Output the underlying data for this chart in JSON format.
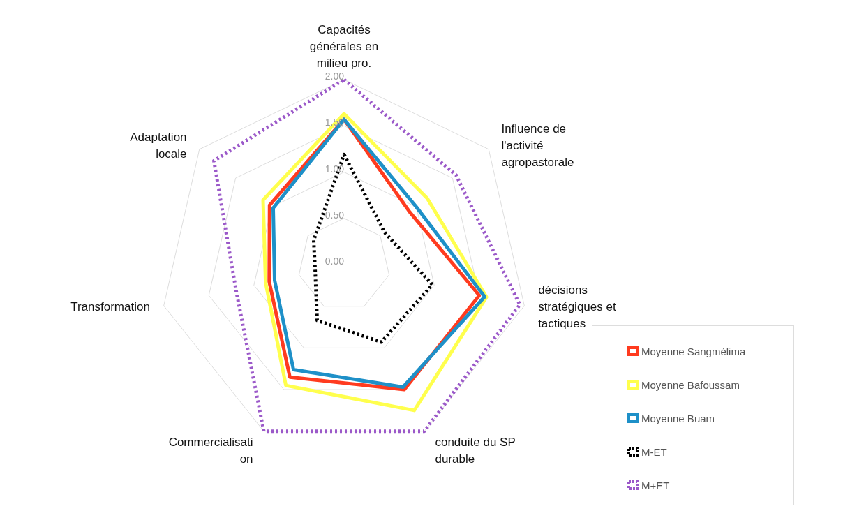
{
  "chart_data": {
    "type": "radar",
    "categories": [
      "Capacités générales en milieu pro.",
      "Influence de l'activité agropastorale",
      "décisions stratégiques et tactiques",
      "conduite du SP durable",
      "Commercialisation",
      "Transformation",
      "Adaptation locale"
    ],
    "series": [
      {
        "name": "Moyenne Sangmélima",
        "color": "#ff3b1f",
        "values": [
          1.57,
          0.91,
          1.5,
          1.5,
          1.35,
          0.83,
          1.03
        ]
      },
      {
        "name": "Moyenne Bafoussam",
        "color": "#ffff4d",
        "values": [
          1.63,
          1.15,
          1.58,
          1.75,
          1.45,
          0.87,
          1.12
        ]
      },
      {
        "name": "Moyenne Buam",
        "color": "#1e90c8",
        "values": [
          1.57,
          1.0,
          1.56,
          1.47,
          1.26,
          0.77,
          0.98
        ]
      },
      {
        "name": "M-ET",
        "color": "#000000",
        "line_style": "dotted",
        "values": [
          1.19,
          0.56,
          0.98,
          0.93,
          0.67,
          0.32,
          0.42
        ]
      },
      {
        "name": "M+ET",
        "color": "#9b59c9",
        "line_style": "dotted",
        "values": [
          2.0,
          1.55,
          1.95,
          2.0,
          2.0,
          1.2,
          1.8
        ]
      }
    ],
    "ylim": [
      0,
      2
    ],
    "yticks": [
      {
        "value": 0,
        "label": "0.00"
      },
      {
        "value": 0.5,
        "label": "0.50"
      },
      {
        "value": 1,
        "label": "1.00"
      },
      {
        "value": 1.5,
        "label": "1.50"
      },
      {
        "value": 2,
        "label": "2.00"
      }
    ],
    "grid": true,
    "legend": "bottom right",
    "marker": "none"
  }
}
